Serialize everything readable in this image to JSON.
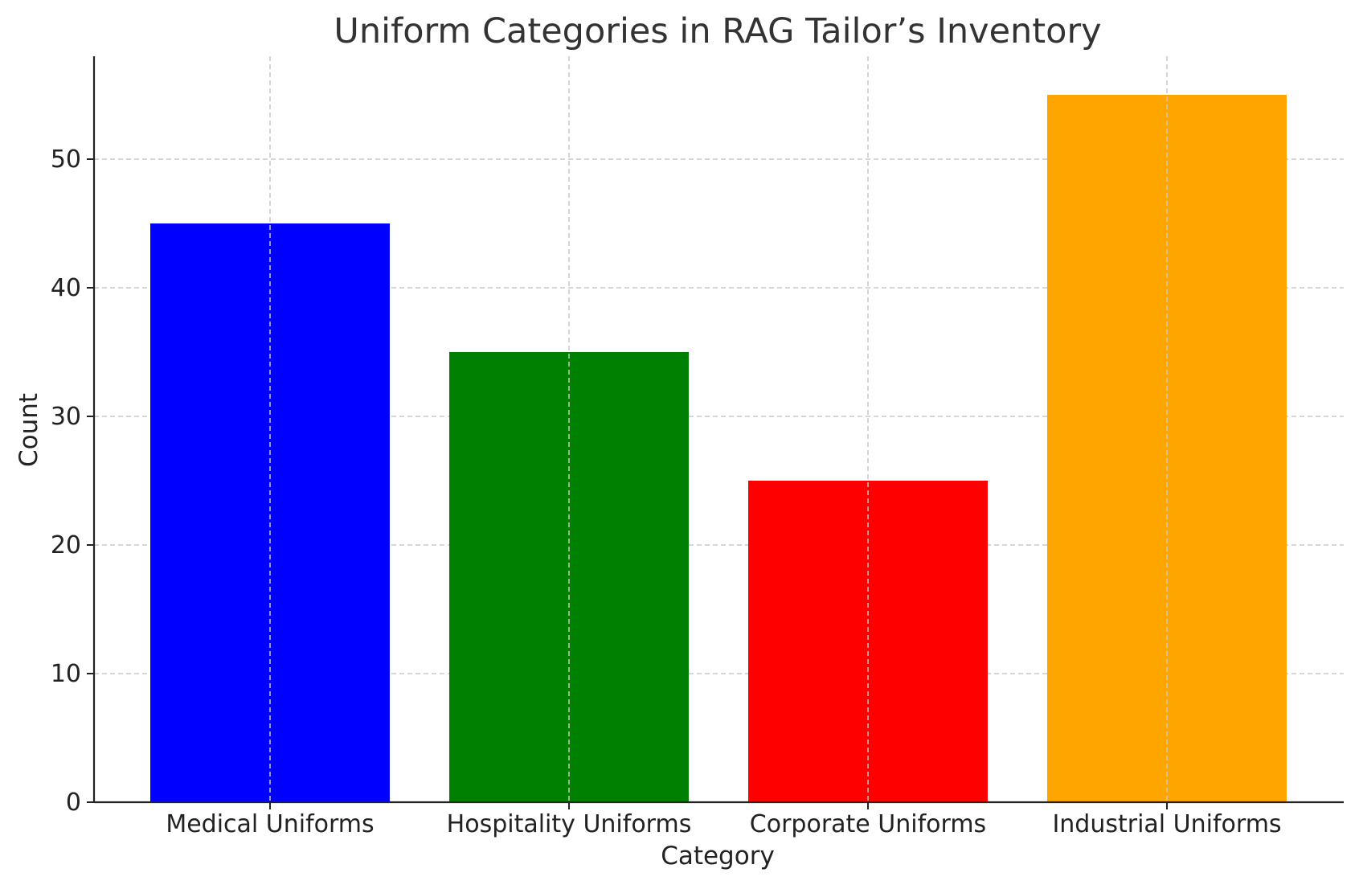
{
  "chart_data": {
    "type": "bar",
    "title": "Uniform Categories in RAG Tailor’s Inventory",
    "xlabel": "Category",
    "ylabel": "Count",
    "categories": [
      "Medical Uniforms",
      "Hospitality Uniforms",
      "Corporate Uniforms",
      "Industrial Uniforms"
    ],
    "values": [
      45,
      35,
      25,
      55
    ],
    "colors": [
      "#0000ff",
      "#008000",
      "#ff0000",
      "#ffa500"
    ],
    "ylim": [
      0,
      58
    ],
    "yticks": [
      "0",
      "10",
      "20",
      "30",
      "40",
      "50"
    ],
    "grid": true,
    "legend": "none"
  }
}
